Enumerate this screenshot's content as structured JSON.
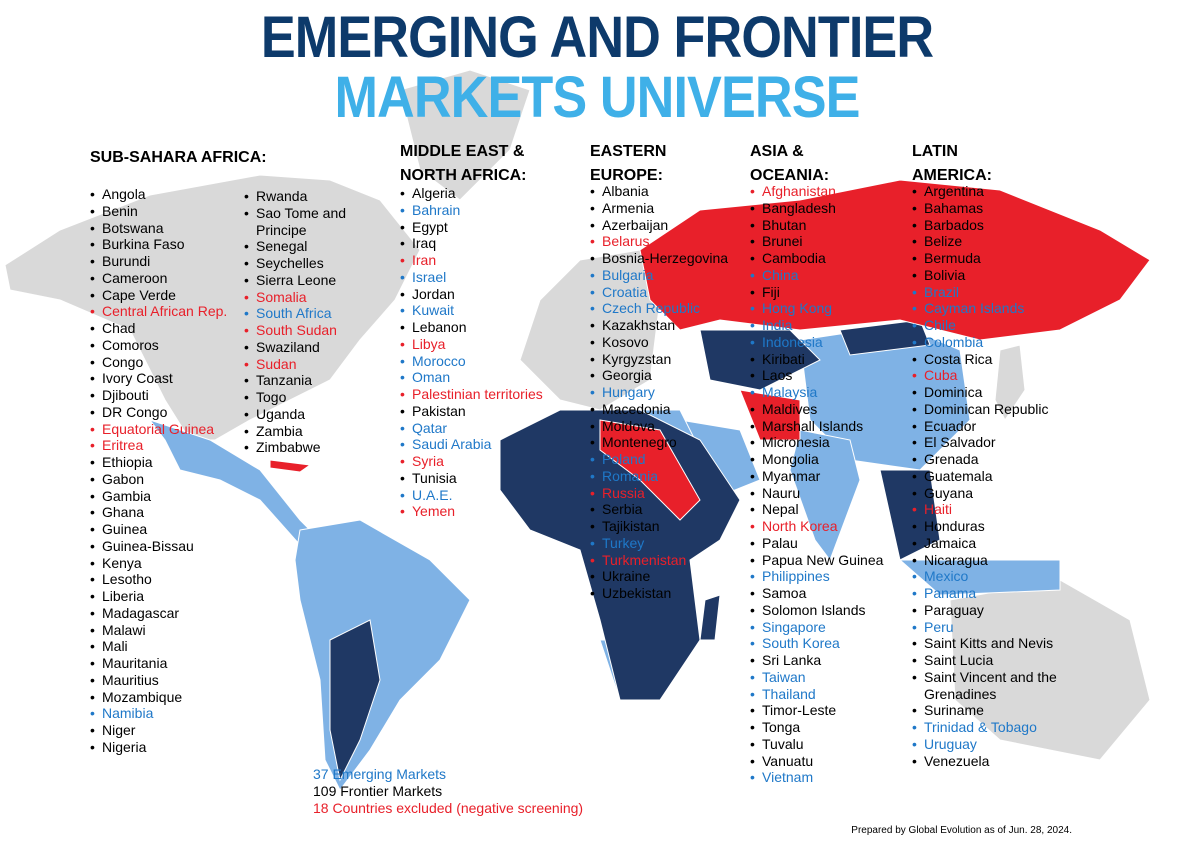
{
  "header": {
    "title_line1": "EMERGING AND FRONTIER",
    "title_line2": "MARKETS UNIVERSE"
  },
  "regions": [
    {
      "name": "SUB-SAHARA AFRICA:",
      "countries": [
        {
          "name": "Angola",
          "color": "#000000"
        },
        {
          "name": "Benin",
          "color": "#000000"
        },
        {
          "name": "Botswana",
          "color": "#000000"
        },
        {
          "name": "Burkina Faso",
          "color": "#000000"
        },
        {
          "name": "Burundi",
          "color": "#000000"
        },
        {
          "name": "Cameroon",
          "color": "#000000"
        },
        {
          "name": "Cape Verde",
          "color": "#000000"
        },
        {
          "name": "Central African Rep.",
          "color": "#e8202a"
        },
        {
          "name": "Chad",
          "color": "#000000"
        },
        {
          "name": "Comoros",
          "color": "#000000"
        },
        {
          "name": "Congo",
          "color": "#000000"
        },
        {
          "name": "Ivory Coast",
          "color": "#000000"
        },
        {
          "name": "Djibouti",
          "color": "#000000"
        },
        {
          "name": "DR Congo",
          "color": "#000000"
        },
        {
          "name": "Equatorial Guinea",
          "color": "#e8202a"
        },
        {
          "name": "Eritrea",
          "color": "#e8202a"
        },
        {
          "name": "Ethiopia",
          "color": "#000000"
        },
        {
          "name": "Gabon",
          "color": "#000000"
        },
        {
          "name": "Gambia",
          "color": "#000000"
        },
        {
          "name": "Ghana",
          "color": "#000000"
        },
        {
          "name": "Guinea",
          "color": "#000000"
        },
        {
          "name": "Guinea-Bissau",
          "color": "#000000"
        },
        {
          "name": "Kenya",
          "color": "#000000"
        },
        {
          "name": "Lesotho",
          "color": "#000000"
        },
        {
          "name": "Liberia",
          "color": "#000000"
        },
        {
          "name": "Madagascar",
          "color": "#000000"
        },
        {
          "name": "Malawi",
          "color": "#000000"
        },
        {
          "name": "Mali",
          "color": "#000000"
        },
        {
          "name": "Mauritania",
          "color": "#000000"
        },
        {
          "name": "Mauritius",
          "color": "#000000"
        },
        {
          "name": "Mozambique",
          "color": "#000000"
        },
        {
          "name": "Namibia",
          "color": "#1f78c8"
        },
        {
          "name": "Niger",
          "color": "#000000"
        },
        {
          "name": "Nigeria",
          "color": "#000000"
        },
        {
          "name": "Rwanda",
          "color": "#000000"
        },
        {
          "name": "Sao Tome and Principe",
          "color": "#000000"
        },
        {
          "name": "Senegal",
          "color": "#000000"
        },
        {
          "name": "Seychelles",
          "color": "#000000"
        },
        {
          "name": "Sierra Leone",
          "color": "#000000"
        },
        {
          "name": "Somalia",
          "color": "#e8202a"
        },
        {
          "name": "South Africa",
          "color": "#1f78c8"
        },
        {
          "name": "South Sudan",
          "color": "#e8202a"
        },
        {
          "name": "Swaziland",
          "color": "#000000"
        },
        {
          "name": "Sudan",
          "color": "#e8202a"
        },
        {
          "name": "Tanzania",
          "color": "#000000"
        },
        {
          "name": "Togo",
          "color": "#000000"
        },
        {
          "name": "Uganda",
          "color": "#000000"
        },
        {
          "name": "Zambia",
          "color": "#000000"
        },
        {
          "name": "Zimbabwe",
          "color": "#000000"
        }
      ]
    },
    {
      "name": "MIDDLE EAST & NORTH AFRICA:",
      "countries": [
        {
          "name": "Algeria",
          "color": "#000000"
        },
        {
          "name": "Bahrain",
          "color": "#1f78c8"
        },
        {
          "name": "Egypt",
          "color": "#000000"
        },
        {
          "name": "Iraq",
          "color": "#000000"
        },
        {
          "name": "Iran",
          "color": "#e8202a"
        },
        {
          "name": "Israel",
          "color": "#1f78c8"
        },
        {
          "name": "Jordan",
          "color": "#000000"
        },
        {
          "name": "Kuwait",
          "color": "#1f78c8"
        },
        {
          "name": "Lebanon",
          "color": "#000000"
        },
        {
          "name": "Libya",
          "color": "#e8202a"
        },
        {
          "name": "Morocco",
          "color": "#1f78c8"
        },
        {
          "name": "Oman",
          "color": "#1f78c8"
        },
        {
          "name": "Palestinian territories",
          "color": "#e8202a"
        },
        {
          "name": "Pakistan",
          "color": "#000000"
        },
        {
          "name": "Qatar",
          "color": "#1f78c8"
        },
        {
          "name": "Saudi Arabia",
          "color": "#1f78c8"
        },
        {
          "name": "Syria",
          "color": "#e8202a"
        },
        {
          "name": "Tunisia",
          "color": "#000000"
        },
        {
          "name": "U.A.E.",
          "color": "#1f78c8"
        },
        {
          "name": "Yemen",
          "color": "#e8202a"
        }
      ]
    },
    {
      "name": "EASTERN EUROPE:",
      "countries": [
        {
          "name": "Albania",
          "color": "#000000"
        },
        {
          "name": "Armenia",
          "color": "#000000"
        },
        {
          "name": "Azerbaijan",
          "color": "#000000"
        },
        {
          "name": "Belarus",
          "color": "#e8202a"
        },
        {
          "name": "Bosnia-Herzegovina",
          "color": "#000000"
        },
        {
          "name": "Bulgaria",
          "color": "#1f78c8"
        },
        {
          "name": "Croatia",
          "color": "#1f78c8"
        },
        {
          "name": "Czech Republic",
          "color": "#1f78c8"
        },
        {
          "name": "Kazakhstan",
          "color": "#000000"
        },
        {
          "name": "Kosovo",
          "color": "#000000"
        },
        {
          "name": "Kyrgyzstan",
          "color": "#000000"
        },
        {
          "name": "Georgia",
          "color": "#000000"
        },
        {
          "name": "Hungary",
          "color": "#1f78c8"
        },
        {
          "name": "Macedonia",
          "color": "#000000"
        },
        {
          "name": "Moldova",
          "color": "#000000"
        },
        {
          "name": "Montenegro",
          "color": "#000000"
        },
        {
          "name": "Poland",
          "color": "#1f78c8"
        },
        {
          "name": "Romania",
          "color": "#1f78c8"
        },
        {
          "name": "Russia",
          "color": "#e8202a"
        },
        {
          "name": "Serbia",
          "color": "#000000"
        },
        {
          "name": "Tajikistan",
          "color": "#000000"
        },
        {
          "name": "Turkey",
          "color": "#1f78c8"
        },
        {
          "name": "Turkmenistan",
          "color": "#e8202a"
        },
        {
          "name": "Ukraine",
          "color": "#000000"
        },
        {
          "name": "Uzbekistan",
          "color": "#000000"
        }
      ]
    },
    {
      "name": "ASIA & OCEANIA:",
      "countries": [
        {
          "name": "Afghanistan",
          "color": "#e8202a"
        },
        {
          "name": "Bangladesh",
          "color": "#000000"
        },
        {
          "name": "Bhutan",
          "color": "#000000"
        },
        {
          "name": "Brunei",
          "color": "#000000"
        },
        {
          "name": "Cambodia",
          "color": "#000000"
        },
        {
          "name": "China",
          "color": "#1f78c8"
        },
        {
          "name": "Fiji",
          "color": "#000000"
        },
        {
          "name": "Hong Kong",
          "color": "#1f78c8"
        },
        {
          "name": "India",
          "color": "#1f78c8"
        },
        {
          "name": "Indonesia",
          "color": "#1f78c8"
        },
        {
          "name": "Kiribati",
          "color": "#000000"
        },
        {
          "name": "Laos",
          "color": "#000000"
        },
        {
          "name": "Malaysia",
          "color": "#1f78c8"
        },
        {
          "name": "Maldives",
          "color": "#000000"
        },
        {
          "name": "Marshall Islands",
          "color": "#000000"
        },
        {
          "name": "Micronesia",
          "color": "#000000"
        },
        {
          "name": "Mongolia",
          "color": "#000000"
        },
        {
          "name": "Myanmar",
          "color": "#000000"
        },
        {
          "name": "Nauru",
          "color": "#000000"
        },
        {
          "name": "Nepal",
          "color": "#000000"
        },
        {
          "name": "North Korea",
          "color": "#e8202a"
        },
        {
          "name": "Palau",
          "color": "#000000"
        },
        {
          "name": "Papua New Guinea",
          "color": "#000000"
        },
        {
          "name": "Philippines",
          "color": "#1f78c8"
        },
        {
          "name": "Samoa",
          "color": "#000000"
        },
        {
          "name": "Solomon Islands",
          "color": "#000000"
        },
        {
          "name": "Singapore",
          "color": "#1f78c8"
        },
        {
          "name": "South Korea",
          "color": "#1f78c8"
        },
        {
          "name": "Sri Lanka",
          "color": "#000000"
        },
        {
          "name": "Taiwan",
          "color": "#1f78c8"
        },
        {
          "name": "Thailand",
          "color": "#1f78c8"
        },
        {
          "name": "Timor-Leste",
          "color": "#000000"
        },
        {
          "name": "Tonga",
          "color": "#000000"
        },
        {
          "name": "Tuvalu",
          "color": "#000000"
        },
        {
          "name": "Vanuatu",
          "color": "#000000"
        },
        {
          "name": "Vietnam",
          "color": "#1f78c8"
        }
      ]
    },
    {
      "name": "LATIN AMERICA:",
      "countries": [
        {
          "name": "Argentina",
          "color": "#000000"
        },
        {
          "name": "Bahamas",
          "color": "#000000"
        },
        {
          "name": "Barbados",
          "color": "#000000"
        },
        {
          "name": "Belize",
          "color": "#000000"
        },
        {
          "name": "Bermuda",
          "color": "#000000"
        },
        {
          "name": "Bolivia",
          "color": "#000000"
        },
        {
          "name": "Brazil",
          "color": "#1f78c8"
        },
        {
          "name": "Cayman Islands",
          "color": "#1f78c8"
        },
        {
          "name": "Chile",
          "color": "#1f78c8"
        },
        {
          "name": "Colombia",
          "color": "#1f78c8"
        },
        {
          "name": "Costa Rica",
          "color": "#000000"
        },
        {
          "name": "Cuba",
          "color": "#e8202a"
        },
        {
          "name": "Dominica",
          "color": "#000000"
        },
        {
          "name": "Dominican Republic",
          "color": "#000000"
        },
        {
          "name": "Ecuador",
          "color": "#000000"
        },
        {
          "name": "El Salvador",
          "color": "#000000"
        },
        {
          "name": "Grenada",
          "color": "#000000"
        },
        {
          "name": "Guatemala",
          "color": "#000000"
        },
        {
          "name": "Guyana",
          "color": "#000000"
        },
        {
          "name": "Haiti",
          "color": "#e8202a"
        },
        {
          "name": "Honduras",
          "color": "#000000"
        },
        {
          "name": "Jamaica",
          "color": "#000000"
        },
        {
          "name": "Nicaragua",
          "color": "#000000"
        },
        {
          "name": "Mexico",
          "color": "#1f78c8"
        },
        {
          "name": "Panama",
          "color": "#1f78c8"
        },
        {
          "name": "Paraguay",
          "color": "#000000"
        },
        {
          "name": "Peru",
          "color": "#1f78c8"
        },
        {
          "name": "Saint Kitts and Nevis",
          "color": "#000000"
        },
        {
          "name": "Saint Lucia",
          "color": "#000000"
        },
        {
          "name": "Saint Vincent and the Grenadines",
          "color": "#000000"
        },
        {
          "name": "Suriname",
          "color": "#000000"
        },
        {
          "name": "Trinidad & Tobago",
          "color": "#1f78c8"
        },
        {
          "name": "Uruguay",
          "color": "#1f78c8"
        },
        {
          "name": "Venezuela",
          "color": "#000000"
        }
      ]
    }
  ],
  "legend": [
    {
      "text": "37 Emerging Markets",
      "color": "#1f78c8"
    },
    {
      "text": "109 Frontier Markets",
      "color": "#000000"
    },
    {
      "text": "18 Countries excluded (negative screening)",
      "color": "#e8202a"
    }
  ],
  "footer": {
    "note": "Prepared by Global Evolution as of Jun. 28, 2024."
  }
}
